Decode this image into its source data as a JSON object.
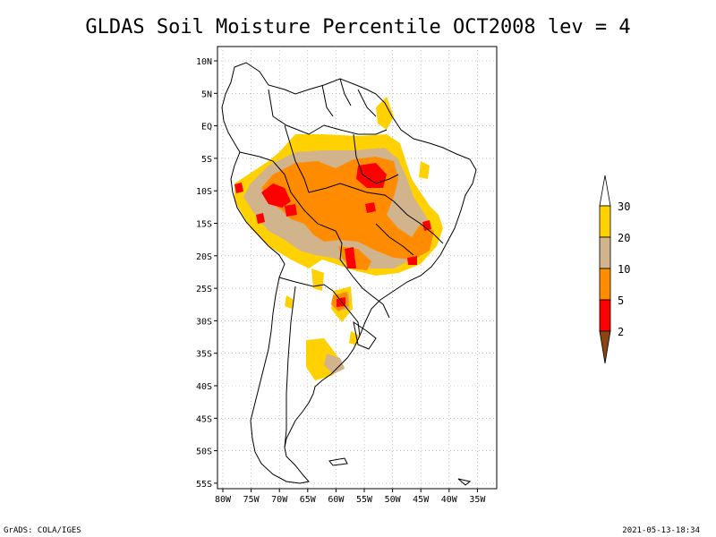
{
  "title": "GLDAS Soil Moisture Percentile OCT2008 lev = 4",
  "lat_labels": [
    "10N",
    "5N",
    "EQ",
    "5S",
    "10S",
    "15S",
    "20S",
    "25S",
    "30S",
    "35S",
    "40S",
    "45S",
    "50S",
    "55S"
  ],
  "lon_labels": [
    "80W",
    "75W",
    "70W",
    "65W",
    "60W",
    "55W",
    "50W",
    "45W",
    "40W",
    "35W"
  ],
  "legend": {
    "labels": [
      "30",
      "20",
      "10",
      "5",
      "2"
    ],
    "colors": {
      "above30": "#ffffff",
      "c20_30": "#ffd100",
      "c10_20": "#d2b48c",
      "c5_10": "#ff8c00",
      "c2_5": "#ff0000",
      "below2": "#8b4513"
    }
  },
  "footer": {
    "left": "GrADS: COLA/IGES",
    "right": "2021-05-13-18:34"
  }
}
